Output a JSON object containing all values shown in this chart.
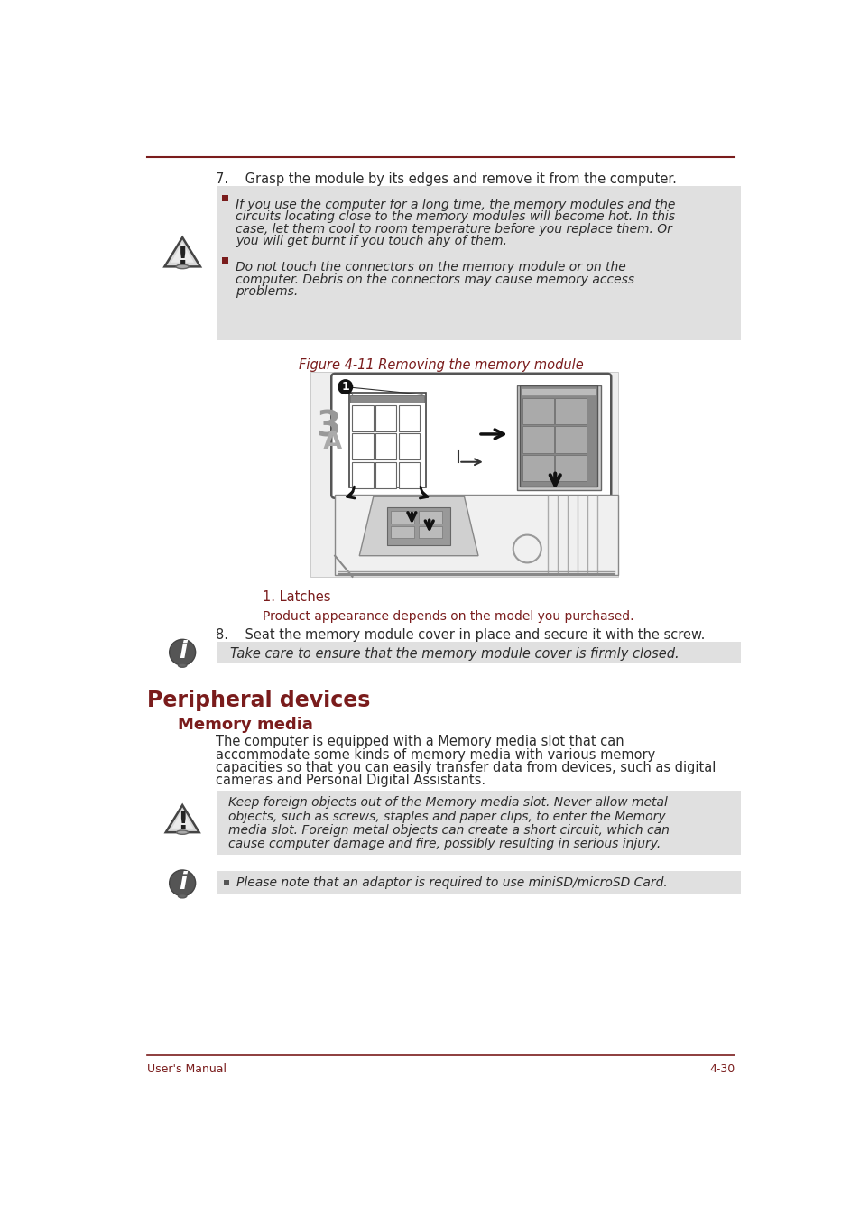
{
  "bg_color": "#ffffff",
  "top_line_color": "#7a1c1c",
  "text_color": "#2c2c2c",
  "red_color": "#7a1c1c",
  "gray_bg": "#e0e0e0",
  "footer_line_color": "#7a1c1c",
  "step7_text": "7.    Grasp the module by its edges and remove it from the computer.",
  "warning_box1_lines": [
    "If you use the computer for a long time, the memory modules and the",
    "circuits locating close to the memory modules will become hot. In this",
    "case, let them cool to room temperature before you replace them. Or",
    "you will get burnt if you touch any of them."
  ],
  "warning_box2_lines": [
    "Do not touch the connectors on the memory module or on the",
    "computer. Debris on the connectors may cause memory access",
    "problems."
  ],
  "figure_caption": "Figure 4-11 Removing the memory module",
  "latches_text": "1. Latches",
  "product_text": "Product appearance depends on the model you purchased.",
  "step8_text": "8.    Seat the memory module cover in place and secure it with the screw.",
  "info_box1_text": "Take care to ensure that the memory module cover is firmly closed.",
  "section_title": "Peripheral devices",
  "subsection_title": "Memory media",
  "body_text_lines": [
    "The computer is equipped with a Memory media slot that can",
    "accommodate some kinds of memory media with various memory",
    "capacities so that you can easily transfer data from devices, such as digital",
    "cameras and Personal Digital Assistants."
  ],
  "warning_box3_lines": [
    "Keep foreign objects out of the Memory media slot. Never allow metal",
    "objects, such as screws, staples and paper clips, to enter the Memory",
    "media slot. Foreign metal objects can create a short circuit, which can",
    "cause computer damage and fire, possibly resulting in serious injury."
  ],
  "info_box2_text": "Please note that an adaptor is required to use miniSD/microSD Card.",
  "footer_left": "User's Manual",
  "footer_right": "4-30"
}
